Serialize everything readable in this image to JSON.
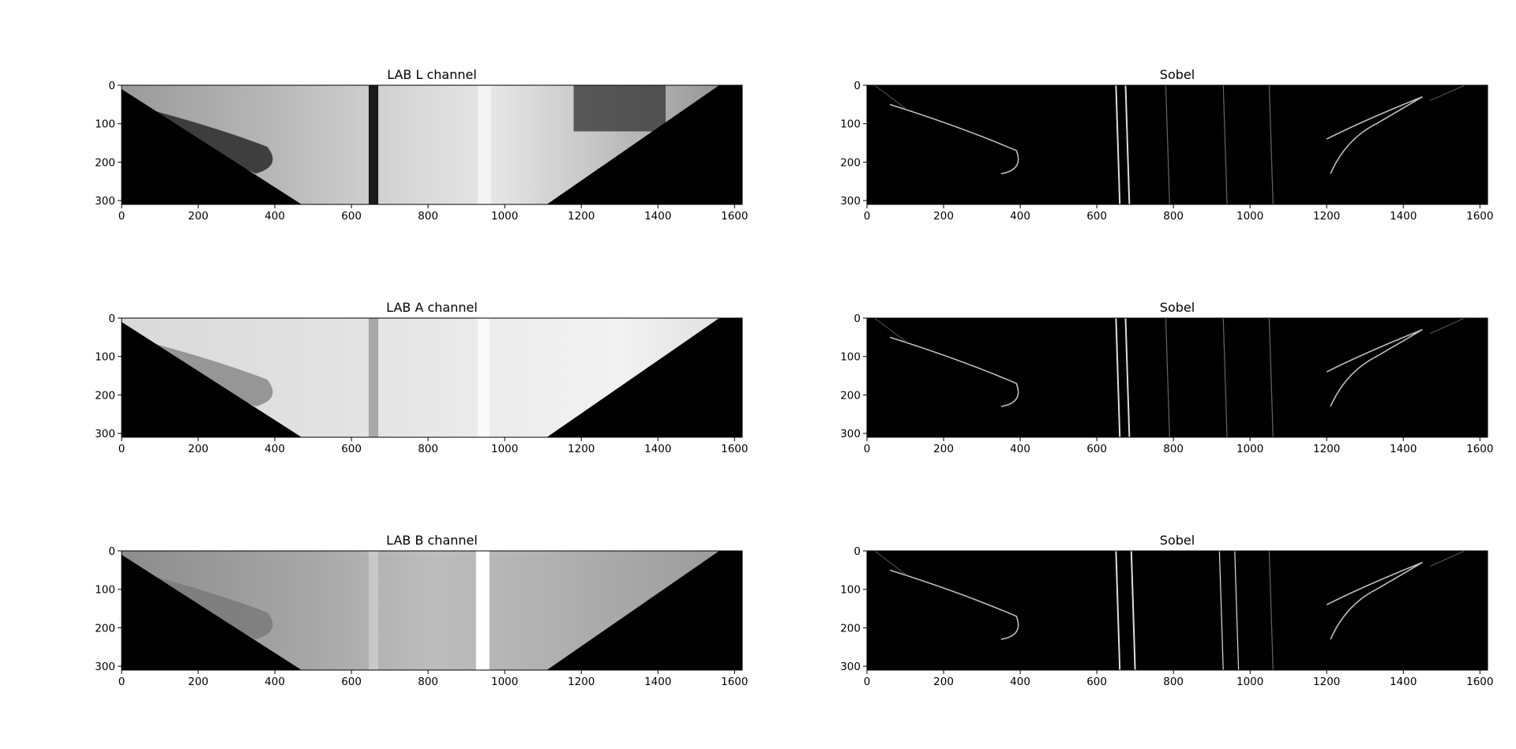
{
  "chart_data": [
    {
      "type": "image",
      "title": "LAB L channel",
      "xlim": [
        0,
        1620
      ],
      "ylim": [
        310,
        0
      ],
      "xticks": [
        0,
        200,
        400,
        600,
        800,
        1000,
        1200,
        1400,
        1600
      ],
      "yticks": [
        0,
        100,
        200,
        300
      ],
      "xtick_labels": [
        "0",
        "200",
        "400",
        "600",
        "800",
        "1000",
        "1200",
        "1400",
        "1600"
      ],
      "ytick_labels": [
        "0",
        "100",
        "200",
        "300"
      ]
    },
    {
      "type": "image",
      "title": "Sobel",
      "xlim": [
        0,
        1620
      ],
      "ylim": [
        310,
        0
      ],
      "xticks": [
        0,
        200,
        400,
        600,
        800,
        1000,
        1200,
        1400,
        1600
      ],
      "yticks": [
        0,
        100,
        200,
        300
      ],
      "xtick_labels": [
        "0",
        "200",
        "400",
        "600",
        "800",
        "1000",
        "1200",
        "1400",
        "1600"
      ],
      "ytick_labels": [
        "0",
        "100",
        "200",
        "300"
      ]
    },
    {
      "type": "image",
      "title": "LAB A channel",
      "xlim": [
        0,
        1620
      ],
      "ylim": [
        310,
        0
      ],
      "xticks": [
        0,
        200,
        400,
        600,
        800,
        1000,
        1200,
        1400,
        1600
      ],
      "yticks": [
        0,
        100,
        200,
        300
      ],
      "xtick_labels": [
        "0",
        "200",
        "400",
        "600",
        "800",
        "1000",
        "1200",
        "1400",
        "1600"
      ],
      "ytick_labels": [
        "0",
        "100",
        "200",
        "300"
      ]
    },
    {
      "type": "image",
      "title": "Sobel",
      "xlim": [
        0,
        1620
      ],
      "ylim": [
        310,
        0
      ],
      "xticks": [
        0,
        200,
        400,
        600,
        800,
        1000,
        1200,
        1400,
        1600
      ],
      "yticks": [
        0,
        100,
        200,
        300
      ],
      "xtick_labels": [
        "0",
        "200",
        "400",
        "600",
        "800",
        "1000",
        "1200",
        "1400",
        "1600"
      ],
      "ytick_labels": [
        "0",
        "100",
        "200",
        "300"
      ]
    },
    {
      "type": "image",
      "title": "LAB B channel",
      "xlim": [
        0,
        1620
      ],
      "ylim": [
        310,
        0
      ],
      "xticks": [
        0,
        200,
        400,
        600,
        800,
        1000,
        1200,
        1400,
        1600
      ],
      "yticks": [
        0,
        100,
        200,
        300
      ],
      "xtick_labels": [
        "0",
        "200",
        "400",
        "600",
        "800",
        "1000",
        "1200",
        "1400",
        "1600"
      ],
      "ytick_labels": [
        "0",
        "100",
        "200",
        "300"
      ]
    },
    {
      "type": "image",
      "title": "Sobel",
      "xlim": [
        0,
        1620
      ],
      "ylim": [
        310,
        0
      ],
      "xticks": [
        0,
        200,
        400,
        600,
        800,
        1000,
        1200,
        1400,
        1600
      ],
      "yticks": [
        0,
        100,
        200,
        300
      ],
      "xtick_labels": [
        "0",
        "200",
        "400",
        "600",
        "800",
        "1000",
        "1200",
        "1400",
        "1600"
      ],
      "ytick_labels": [
        "0",
        "100",
        "200",
        "300"
      ]
    }
  ]
}
